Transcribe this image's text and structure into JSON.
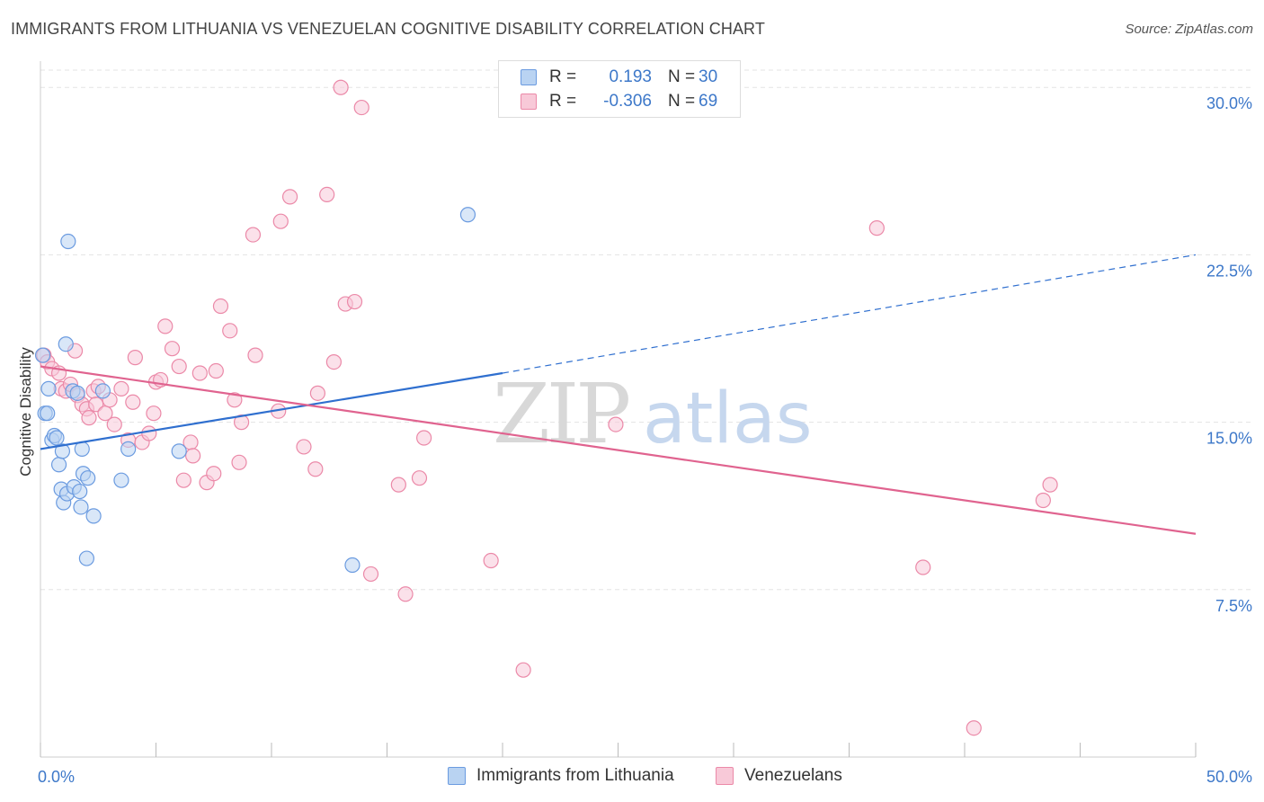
{
  "title": "IMMIGRANTS FROM LITHUANIA VS VENEZUELAN COGNITIVE DISABILITY CORRELATION CHART",
  "source": "Source: ZipAtlas.com",
  "watermark": {
    "zip": "ZIP",
    "atlas": "atlas"
  },
  "legend": {
    "r_label": "R =",
    "n_label": "N =",
    "series1": {
      "r": "0.193",
      "n": "30"
    },
    "series2": {
      "r": "-0.306",
      "n": "69"
    }
  },
  "bottom_legend": {
    "series1": "Immigrants from Lithuania",
    "series2": "Venezuelans"
  },
  "colors": {
    "blue_fill": "#b9d3f2",
    "blue_stroke": "#6b9be0",
    "blue_line": "#2f6fcf",
    "pink_fill": "#f8c9d8",
    "pink_stroke": "#eb89a8",
    "pink_line": "#e0638f",
    "tick_label": "#3d78c9",
    "grid": "#e3e3e3"
  },
  "chart_data": {
    "type": "scatter",
    "title": "IMMIGRANTS FROM LITHUANIA VS VENEZUELAN COGNITIVE DISABILITY CORRELATION CHART",
    "xlabel": "",
    "ylabel": "Cognitive Disability",
    "xlim": [
      0,
      50
    ],
    "ylim": [
      0,
      31.5
    ],
    "x_tick_labels": [
      "0.0%",
      "50.0%"
    ],
    "y_ticks": [
      7.5,
      15.0,
      22.5,
      30.0
    ],
    "y_tick_labels": [
      "7.5%",
      "15.0%",
      "22.5%",
      "30.0%"
    ],
    "grid": true,
    "legend_position": "top-center",
    "series": [
      {
        "name": "Immigrants from Lithuania",
        "color": "#6b9be0",
        "r": 0.193,
        "n": 30,
        "trend": {
          "x": [
            0,
            20
          ],
          "y": [
            13.8,
            17.2
          ],
          "dashed_to": [
            50,
            22.5
          ]
        },
        "points": [
          [
            0.1,
            18.0
          ],
          [
            0.2,
            15.4
          ],
          [
            0.3,
            15.4
          ],
          [
            0.35,
            16.5
          ],
          [
            0.5,
            14.2
          ],
          [
            0.6,
            14.4
          ],
          [
            0.7,
            14.3
          ],
          [
            0.8,
            13.1
          ],
          [
            0.9,
            12.0
          ],
          [
            0.95,
            13.7
          ],
          [
            1.0,
            11.4
          ],
          [
            1.1,
            18.5
          ],
          [
            1.15,
            11.8
          ],
          [
            1.2,
            23.1
          ],
          [
            1.4,
            16.4
          ],
          [
            1.45,
            12.1
          ],
          [
            1.6,
            16.3
          ],
          [
            1.7,
            11.9
          ],
          [
            1.75,
            11.2
          ],
          [
            1.8,
            13.8
          ],
          [
            1.85,
            12.7
          ],
          [
            2.0,
            8.9
          ],
          [
            2.05,
            12.5
          ],
          [
            2.3,
            10.8
          ],
          [
            2.7,
            16.4
          ],
          [
            3.5,
            12.4
          ],
          [
            3.8,
            13.8
          ],
          [
            6.0,
            13.7
          ],
          [
            13.5,
            8.6
          ],
          [
            18.5,
            24.3
          ]
        ]
      },
      {
        "name": "Venezuelans",
        "color": "#eb89a8",
        "r": -0.306,
        "n": 69,
        "trend": {
          "x": [
            0,
            50
          ],
          "y": [
            17.5,
            10.0
          ]
        },
        "points": [
          [
            0.15,
            18.0
          ],
          [
            0.3,
            17.7
          ],
          [
            0.5,
            17.4
          ],
          [
            0.8,
            17.2
          ],
          [
            0.9,
            16.5
          ],
          [
            1.1,
            16.4
          ],
          [
            1.3,
            16.7
          ],
          [
            1.5,
            18.2
          ],
          [
            1.6,
            16.2
          ],
          [
            1.8,
            15.8
          ],
          [
            2.0,
            15.6
          ],
          [
            2.1,
            15.2
          ],
          [
            2.3,
            16.4
          ],
          [
            2.4,
            15.8
          ],
          [
            2.5,
            16.6
          ],
          [
            2.8,
            15.4
          ],
          [
            3.0,
            16.0
          ],
          [
            3.2,
            14.9
          ],
          [
            3.5,
            16.5
          ],
          [
            3.8,
            14.2
          ],
          [
            4.0,
            15.9
          ],
          [
            4.1,
            17.9
          ],
          [
            4.4,
            14.1
          ],
          [
            4.7,
            14.5
          ],
          [
            4.9,
            15.4
          ],
          [
            5.0,
            16.8
          ],
          [
            5.2,
            16.9
          ],
          [
            5.4,
            19.3
          ],
          [
            5.7,
            18.3
          ],
          [
            6.0,
            17.5
          ],
          [
            6.2,
            12.4
          ],
          [
            6.5,
            14.1
          ],
          [
            6.6,
            13.5
          ],
          [
            6.9,
            17.2
          ],
          [
            7.2,
            12.3
          ],
          [
            7.5,
            12.7
          ],
          [
            7.6,
            17.3
          ],
          [
            7.8,
            20.2
          ],
          [
            8.2,
            19.1
          ],
          [
            8.4,
            16.0
          ],
          [
            8.6,
            13.2
          ],
          [
            8.7,
            15.0
          ],
          [
            9.2,
            23.4
          ],
          [
            9.3,
            18.0
          ],
          [
            10.3,
            15.5
          ],
          [
            10.4,
            24.0
          ],
          [
            10.8,
            25.1
          ],
          [
            11.4,
            13.9
          ],
          [
            11.9,
            12.9
          ],
          [
            12.0,
            16.3
          ],
          [
            12.4,
            25.2
          ],
          [
            12.7,
            17.7
          ],
          [
            13.0,
            30.0
          ],
          [
            13.2,
            20.3
          ],
          [
            13.6,
            20.4
          ],
          [
            13.9,
            29.1
          ],
          [
            14.3,
            8.2
          ],
          [
            15.5,
            12.2
          ],
          [
            15.8,
            7.3
          ],
          [
            16.4,
            12.5
          ],
          [
            16.6,
            14.3
          ],
          [
            19.5,
            8.8
          ],
          [
            20.9,
            3.9
          ],
          [
            24.9,
            14.9
          ],
          [
            36.2,
            23.7
          ],
          [
            38.2,
            8.5
          ],
          [
            40.4,
            1.3
          ],
          [
            43.4,
            11.5
          ],
          [
            43.7,
            12.2
          ]
        ]
      }
    ]
  }
}
